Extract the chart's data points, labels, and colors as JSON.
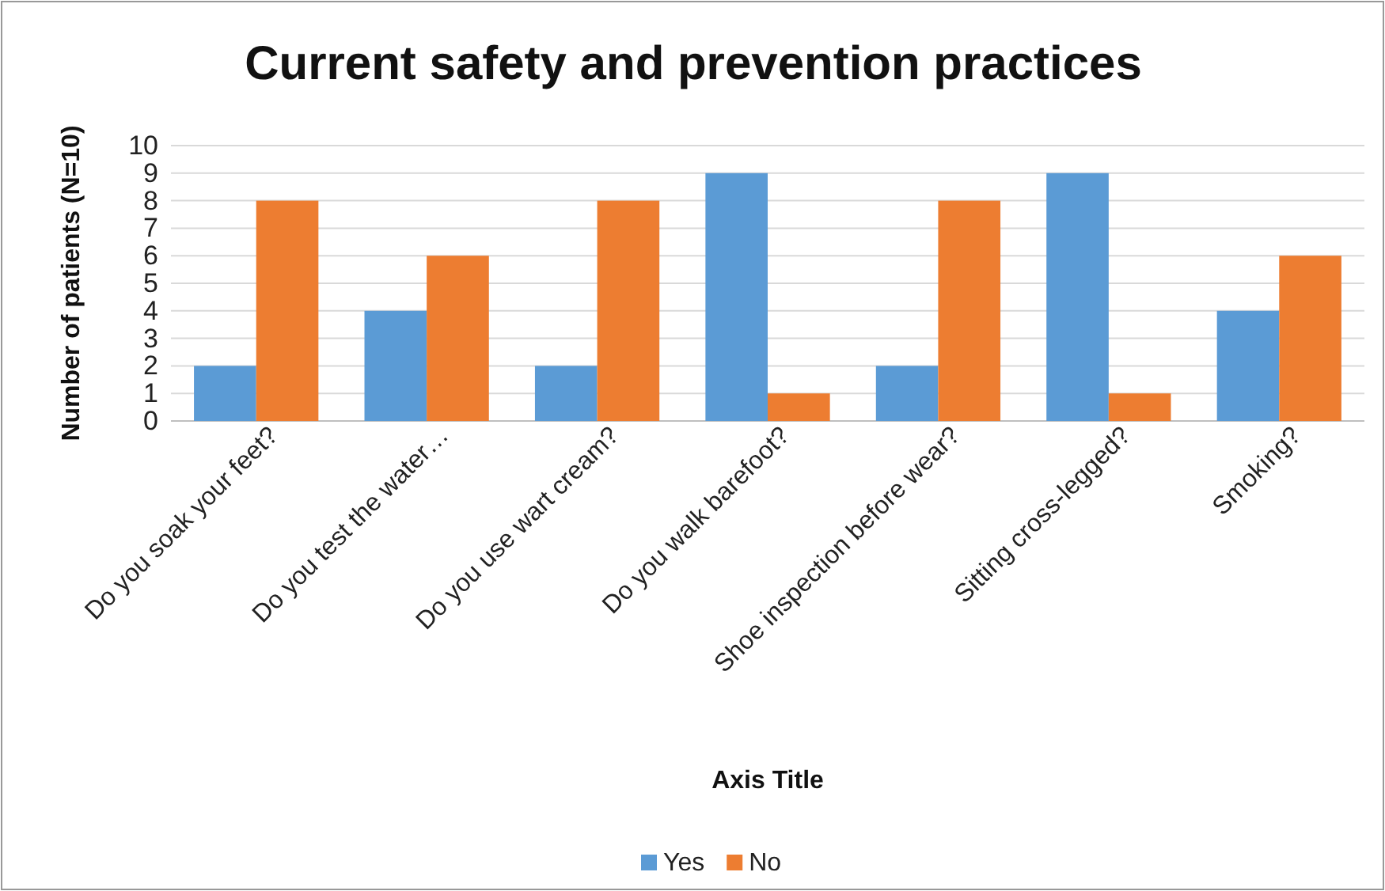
{
  "chart_data": {
    "type": "bar",
    "title": "Current safety and prevention practices",
    "xlabel": "Axis Title",
    "ylabel": "Number of patients (N=10)",
    "categories": [
      "Do you soak your feet?",
      "Do you test the water…",
      "Do you use wart cream?",
      "Do you walk barefoot?",
      "Shoe inspection before wear?",
      "Sitting cross-legged?",
      "Smoking?"
    ],
    "series": [
      {
        "name": "Yes",
        "color": "#5b9bd5",
        "values": [
          2,
          4,
          2,
          9,
          2,
          9,
          4
        ]
      },
      {
        "name": "No",
        "color": "#ed7d31",
        "values": [
          8,
          6,
          8,
          1,
          8,
          1,
          6
        ]
      }
    ],
    "ylim": [
      0,
      10
    ],
    "yticks": [
      0,
      1,
      2,
      3,
      4,
      5,
      6,
      7,
      8,
      9,
      10
    ],
    "grid": "y",
    "legend": "bottom"
  }
}
